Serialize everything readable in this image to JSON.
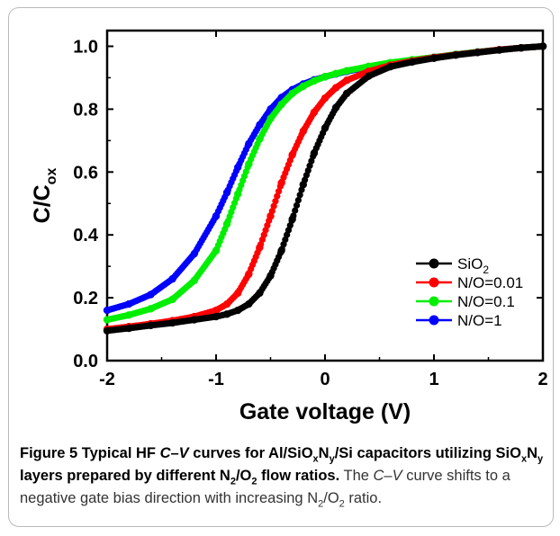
{
  "chart_data": {
    "type": "scatter",
    "xlabel": "Gate voltage (V)",
    "ylabel": {
      "main": "C/C",
      "sub": "ox"
    },
    "xlim": [
      -2,
      2
    ],
    "ylim": [
      0,
      1.05
    ],
    "xticks": [
      "-2",
      "-1",
      "0",
      "1",
      "2"
    ],
    "yticks": [
      "0.0",
      "0.2",
      "0.4",
      "0.6",
      "0.8",
      "1.0"
    ],
    "grid": false,
    "legend_position": "bottom-right",
    "x": [
      -2.0,
      -1.8,
      -1.6,
      -1.4,
      -1.2,
      -1.0,
      -0.9,
      -0.8,
      -0.7,
      -0.6,
      -0.5,
      -0.4,
      -0.3,
      -0.2,
      -0.1,
      0.0,
      0.1,
      0.2,
      0.4,
      0.6,
      0.8,
      1.0,
      1.2,
      1.4,
      1.6,
      1.8,
      2.0
    ],
    "series": [
      {
        "name": "SiO",
        "name_sub": "2",
        "color": "#000000",
        "values": [
          0.095,
          0.103,
          0.112,
          0.12,
          0.13,
          0.14,
          0.148,
          0.16,
          0.18,
          0.215,
          0.27,
          0.35,
          0.45,
          0.56,
          0.66,
          0.74,
          0.805,
          0.85,
          0.905,
          0.935,
          0.95,
          0.962,
          0.972,
          0.98,
          0.988,
          0.995,
          1.0
        ]
      },
      {
        "name": "N/O=0.01",
        "color": "#ff0000",
        "values": [
          0.1,
          0.108,
          0.117,
          0.127,
          0.14,
          0.16,
          0.18,
          0.215,
          0.275,
          0.36,
          0.46,
          0.565,
          0.655,
          0.73,
          0.79,
          0.835,
          0.868,
          0.892,
          0.92,
          0.94,
          0.953,
          0.964,
          0.973,
          0.981,
          0.989,
          0.995,
          1.0
        ]
      },
      {
        "name": "N/O=0.1",
        "color": "#00ee00",
        "values": [
          0.13,
          0.145,
          0.165,
          0.195,
          0.255,
          0.35,
          0.435,
          0.53,
          0.625,
          0.705,
          0.77,
          0.815,
          0.85,
          0.873,
          0.89,
          0.903,
          0.913,
          0.922,
          0.936,
          0.948,
          0.957,
          0.965,
          0.974,
          0.982,
          0.989,
          0.995,
          1.0
        ]
      },
      {
        "name": "N/O=1",
        "color": "#0000ff",
        "values": [
          0.16,
          0.18,
          0.21,
          0.26,
          0.34,
          0.46,
          0.535,
          0.615,
          0.69,
          0.75,
          0.8,
          0.837,
          0.862,
          0.88,
          0.893,
          0.903,
          0.912,
          0.92,
          0.934,
          0.946,
          0.956,
          0.965,
          0.974,
          0.982,
          0.989,
          0.995,
          1.0
        ]
      }
    ]
  },
  "caption": {
    "label": "Figure 5",
    "bold_parts": [
      "Typical HF ",
      "C–V",
      " curves for Al/SiO",
      "x",
      "N",
      "y",
      "/Si capacitors utilizing SiO",
      "x",
      "N",
      "y",
      " layers prepared by different N",
      "2",
      "/O",
      "2",
      " flow ratios."
    ],
    "normal_parts": [
      "The ",
      "C–V",
      " curve shifts to a negative gate bias direction with increasing N",
      "2",
      "/O",
      "2",
      " ratio."
    ]
  }
}
